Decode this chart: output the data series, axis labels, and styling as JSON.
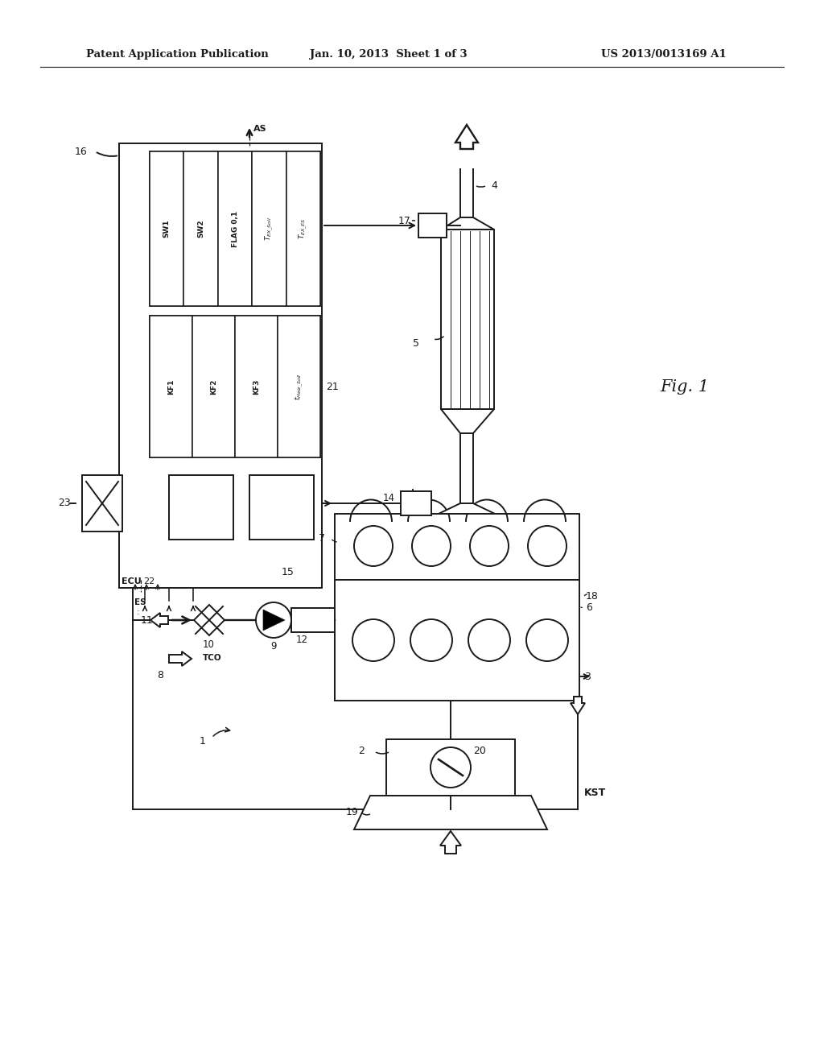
{
  "header_left": "Patent Application Publication",
  "header_center": "Jan. 10, 2013  Sheet 1 of 3",
  "header_right": "US 2013/0013169 A1",
  "bg_color": "#ffffff",
  "lc": "#1a1a1a"
}
